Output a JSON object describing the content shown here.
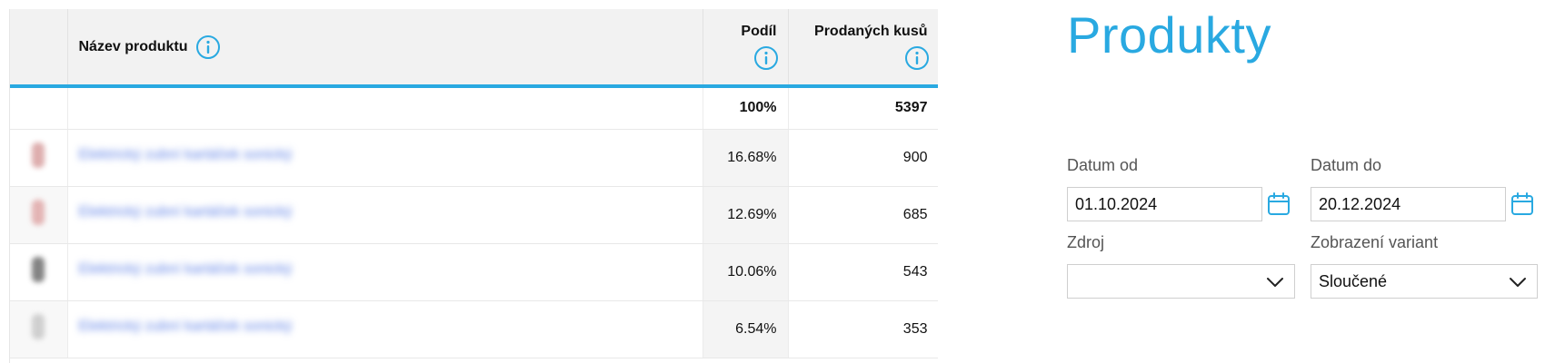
{
  "table": {
    "columns": {
      "name": "Název produktu",
      "share": "Podíl",
      "sold": "Prodaných kusů"
    },
    "totals": {
      "share": "100%",
      "sold": "5397"
    },
    "rows": [
      {
        "product": "Elektrický zubní kartáček sonický",
        "share": "16.68%",
        "sold": "900",
        "thumb_color": "#d8a0a0"
      },
      {
        "product": "Elektrický zubní kartáček sonický",
        "share": "12.69%",
        "sold": "685",
        "thumb_color": "#e0a8a8"
      },
      {
        "product": "Elektrický zubní kartáček sonický",
        "share": "10.06%",
        "sold": "543",
        "thumb_color": "#6e6e6e"
      },
      {
        "product": "Elektrický zubní kartáček sonický",
        "share": "6.54%",
        "sold": "353",
        "thumb_color": "#c8c8c8"
      }
    ]
  },
  "panel": {
    "title": "Produkty",
    "date_from": {
      "label": "Datum od",
      "value": "01.10.2024"
    },
    "date_to": {
      "label": "Datum do",
      "value": "20.12.2024"
    },
    "source": {
      "label": "Zdroj",
      "value": ""
    },
    "variants": {
      "label": "Zobrazení variant",
      "value": "Sloučené"
    }
  },
  "colors": {
    "accent": "#29a9e1",
    "link_blurred": "#5c7fe6"
  },
  "icons": {
    "info": "info-circle-icon",
    "calendar": "calendar-icon",
    "dropdown": "chevron-down-icon"
  }
}
